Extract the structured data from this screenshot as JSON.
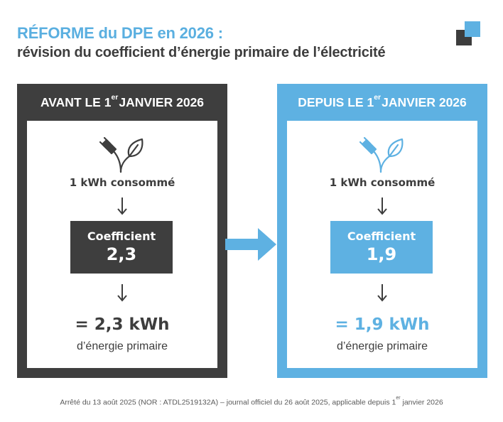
{
  "header": {
    "title_line1": "RÉFORME du DPE en 2026 :",
    "title_line2": "révision du coefficient d’énergie primaire de l’électricité",
    "logo_icon": "brand-logo-icon"
  },
  "colors": {
    "dark": "#3e3e3e",
    "blue": "#5eb1e2",
    "text": "#3d3d3d"
  },
  "panels": {
    "before": {
      "header_prefix": "AVANT LE 1",
      "header_sup": "er",
      "header_suffix": " JANVIER 2026",
      "icon": "plug-leaf-icon",
      "consumed": "1 kWh consommé",
      "coef_label": "Coefficient",
      "coef_value": "2,3",
      "result": "= 2,3 kWh",
      "result_sub": "d’énergie primaire"
    },
    "after": {
      "header_prefix": "DEPUIS LE 1",
      "header_sup": "er",
      "header_suffix": " JANVIER 2026",
      "icon": "plug-leaf-icon",
      "consumed": "1 kWh consommé",
      "coef_label": "Coefficient",
      "coef_value": "1,9",
      "result": "= 1,9 kWh",
      "result_sub": "d’énergie primaire"
    }
  },
  "transition_icon": "arrow-right-icon",
  "footnote": {
    "prefix": "Arrêté du 13 août 2025 (NOR : ATDL2519132A) – journal officiel du 26 août 2025, applicable depuis 1",
    "sup": "er",
    "suffix": " janvier 2026"
  }
}
